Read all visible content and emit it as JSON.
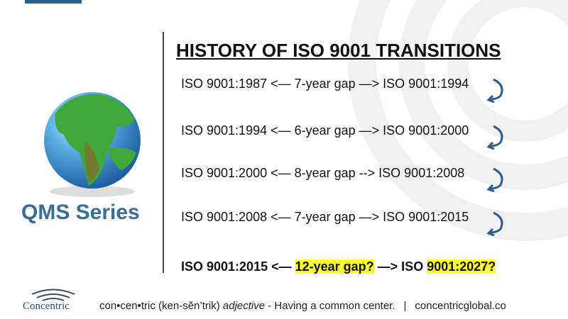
{
  "header": {
    "title": "HISTORY OF ISO 9001 TRANSITIONS"
  },
  "brand": {
    "series": "QMS Series",
    "logo": "Concentric"
  },
  "transitions": [
    {
      "text": "ISO 9001:1987 <— 7-year gap —> ISO 9001:1994"
    },
    {
      "text": "ISO 9001:1994 <— 6-year gap —> ISO 9001:2000"
    },
    {
      "text": "ISO 9001:2000 <— 8-year gap --> ISO 9001:2008"
    },
    {
      "text": "ISO 9001:2008 <— 7-year gap —> ISO 9001:2015"
    }
  ],
  "next_transition": {
    "start": "ISO 9001:2015 <— ",
    "gap": "12-year gap?",
    "middle": " —> ISO ",
    "end": "9001:2027?"
  },
  "footer": {
    "word": "con•cen•tric (ken-sĕn’trik) ",
    "part_of_speech": "adjective",
    "definition": " - Having a common center.",
    "separator": "|",
    "url": "concentricglobal.co"
  }
}
